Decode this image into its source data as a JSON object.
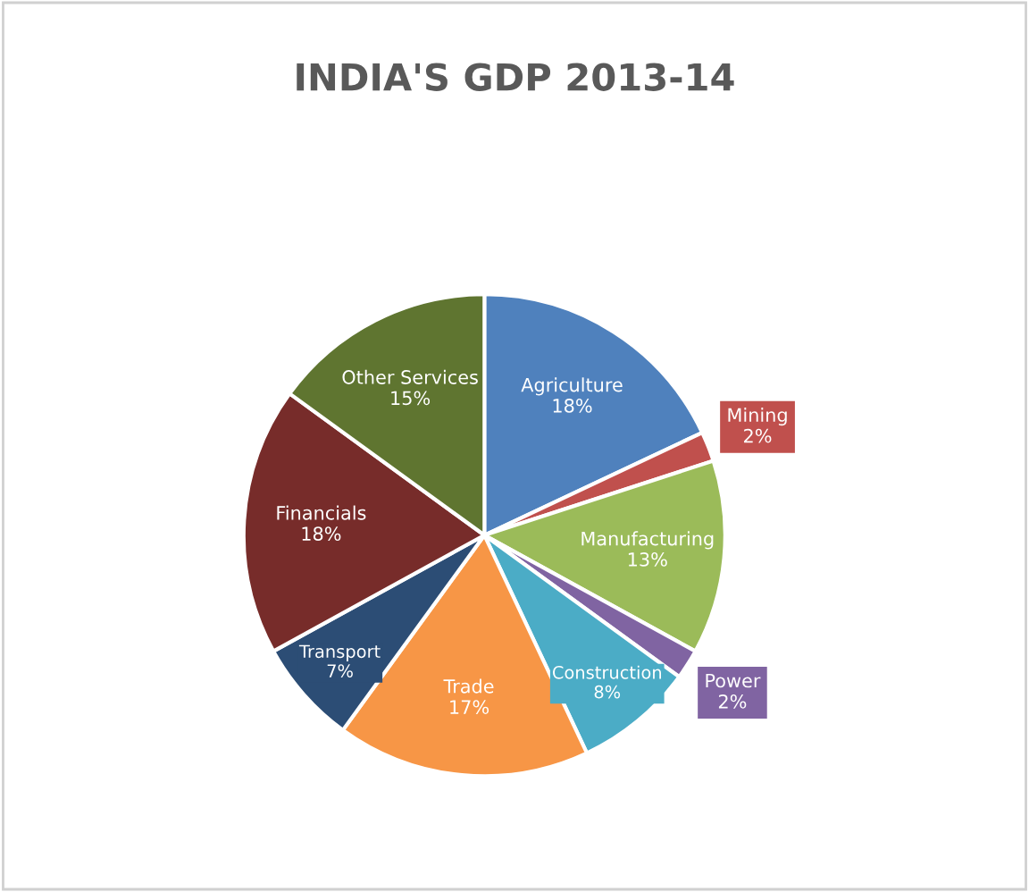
{
  "chart_data": {
    "type": "pie",
    "title": "INDIA'S GDP 2013-14",
    "categories": [
      "Agriculture",
      "Mining",
      "Manufacturing",
      "Power",
      "Construction",
      "Trade",
      "Transport",
      "Financials",
      "Other Services"
    ],
    "values": [
      18,
      2,
      13,
      2,
      8,
      17,
      7,
      18,
      15
    ],
    "value_labels": [
      "18%",
      "2%",
      "13%",
      "2%",
      "8%",
      "17%",
      "7%",
      "18%",
      "15%"
    ],
    "colors": [
      "#4f81bd",
      "#c0504d",
      "#9bbb59",
      "#8064a2",
      "#4bacc6",
      "#f79646",
      "#2c4d75",
      "#772c2a",
      "#5f7530"
    ]
  }
}
